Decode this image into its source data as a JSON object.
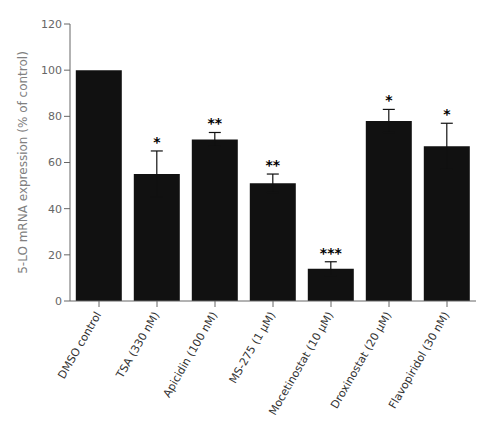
{
  "chart_data": {
    "type": "bar",
    "categories": [
      "DMSO control",
      "TSA (330 nM)",
      "Apicidin (100 nM)",
      "MS-275 (1 μM)",
      "Mocetinostat (10 μM)",
      "Droxinostat (20 μM)",
      "Flavopiridol (30 nM)"
    ],
    "values": [
      100,
      55,
      70,
      51,
      14,
      78,
      67
    ],
    "errors": [
      0,
      10,
      3,
      4,
      3,
      5,
      10
    ],
    "annotations": [
      {
        "category": "TSA (330 nM)",
        "text": "*"
      },
      {
        "category": "Apicidin (100 nM)",
        "text": "**"
      },
      {
        "category": "MS-275 (1 μM)",
        "text": "**"
      },
      {
        "category": "Mocetinostat (10 μM)",
        "text": "***"
      },
      {
        "category": "Droxinostat (20 μM)",
        "text": "*"
      },
      {
        "category": "Flavopiridol (30 nM)",
        "text": "*"
      }
    ],
    "color": "#111111",
    "ylabel": "5-LO mRNA expression (% of control)",
    "ylim": [
      0,
      120
    ],
    "yticks": [
      0,
      20,
      40,
      60,
      80,
      100,
      120
    ],
    "grid": false
  }
}
